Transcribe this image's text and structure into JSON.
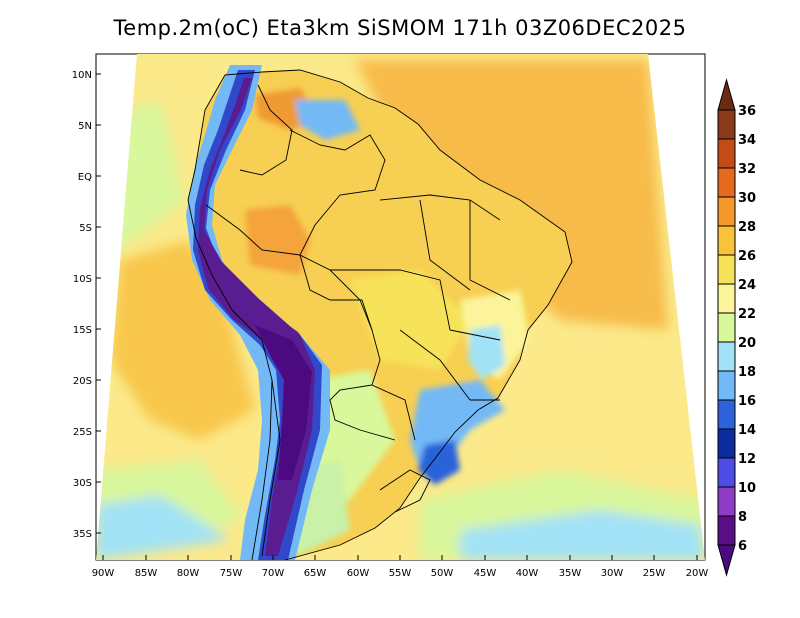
{
  "title": "Temp.2m(oC) Eta3km SiSMOM 171h 03Z06DEC2025",
  "map": {
    "variable": "2 m air temperature",
    "units": "oC",
    "lat_ticks": [
      "10N",
      "5N",
      "EQ",
      "5S",
      "10S",
      "15S",
      "20S",
      "25S",
      "30S",
      "35S"
    ],
    "lon_ticks": [
      "90W",
      "85W",
      "80W",
      "75W",
      "70W",
      "65W",
      "60W",
      "55W",
      "50W",
      "45W",
      "40W",
      "35W",
      "30W",
      "25W",
      "20W"
    ]
  },
  "colorbar": {
    "labels": [
      "36",
      "34",
      "32",
      "30",
      "28",
      "26",
      "24",
      "22",
      "20",
      "18",
      "16",
      "14",
      "12",
      "10",
      "8",
      "6"
    ],
    "colors": [
      "#6b2a12",
      "#8b3a1a",
      "#c24c18",
      "#e66a1e",
      "#f5982a",
      "#f8c23a",
      "#f7e35a",
      "#fbf49a",
      "#d9f79b",
      "#a2e2f6",
      "#73b9f5",
      "#2c62da",
      "#0b2d9e",
      "#4d4de6",
      "#8e3cc5",
      "#5a0f86",
      "#4b0a80"
    ]
  },
  "colors": {
    "ocean": "#fbe98a",
    "land": "#f7cf52",
    "andes": "#5a1d91",
    "border": "#000000"
  }
}
